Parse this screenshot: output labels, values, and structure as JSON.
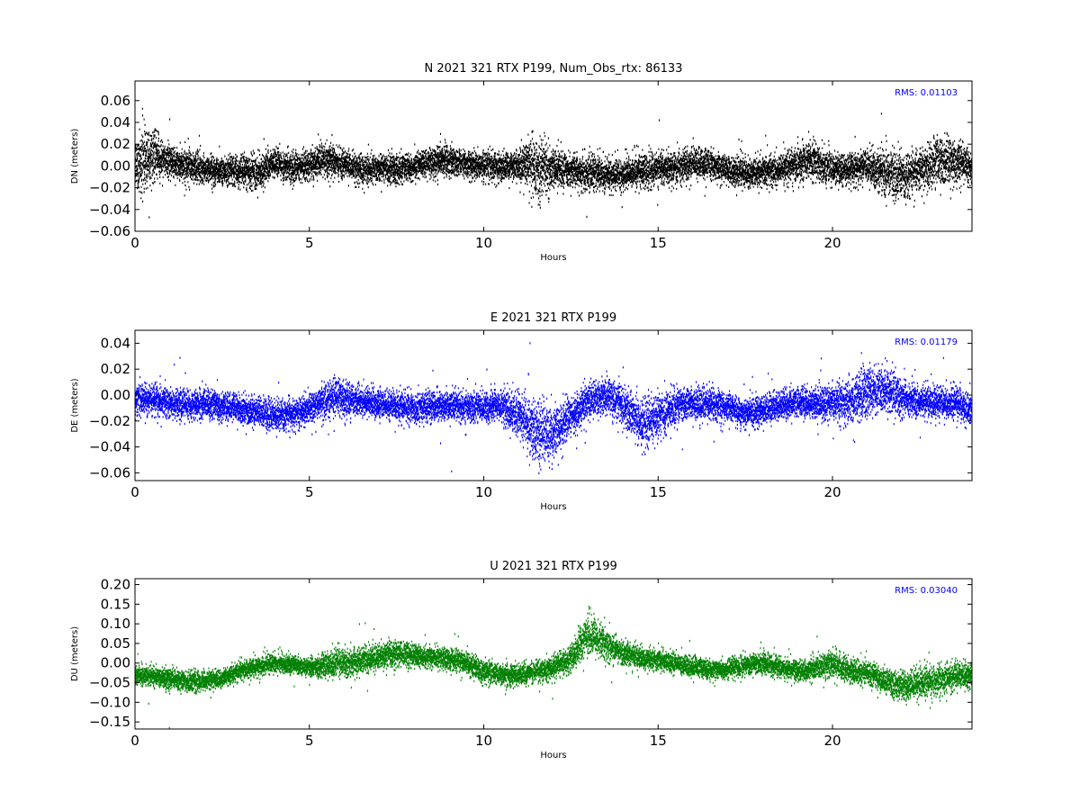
{
  "chart_data": [
    {
      "type": "scatter",
      "title": "N 2021 321 RTX  P199, Num_Obs_rtx: 86133",
      "xlabel": "Hours",
      "ylabel": "DN (meters)",
      "xlim": [
        0,
        24
      ],
      "ylim": [
        -0.06,
        0.078
      ],
      "xticks": [
        0,
        5,
        10,
        15,
        20
      ],
      "yticks": [
        -0.06,
        -0.04,
        -0.02,
        0.0,
        0.02,
        0.04,
        0.06
      ],
      "ytick_labels": [
        "−0.06",
        "−0.04",
        "−0.02",
        "0.00",
        "0.02",
        "0.04",
        "0.06"
      ],
      "annotation": "RMS:  0.01103",
      "color": "#000000",
      "grid": false,
      "profile": {
        "hours": [
          0,
          0.2,
          0.4,
          0.7,
          1.0,
          1.5,
          2.0,
          2.5,
          3.0,
          3.5,
          4.0,
          4.5,
          5.0,
          5.5,
          6.0,
          6.5,
          7.0,
          7.5,
          8.0,
          8.5,
          9.0,
          9.5,
          10.0,
          10.5,
          11.0,
          11.3,
          11.6,
          12.0,
          12.5,
          13.0,
          13.5,
          14.0,
          14.5,
          15.0,
          15.5,
          16.0,
          16.5,
          17.0,
          17.5,
          18.0,
          18.5,
          19.0,
          19.5,
          20.0,
          20.5,
          21.0,
          21.5,
          22.0,
          22.5,
          23.0,
          23.5,
          24.0
        ],
        "mean": [
          0.0,
          0.005,
          0.01,
          0.008,
          0.003,
          0.0,
          -0.003,
          -0.004,
          -0.005,
          -0.006,
          0.003,
          -0.002,
          0.001,
          0.005,
          0.002,
          -0.004,
          -0.003,
          -0.002,
          -0.001,
          0.003,
          0.005,
          0.002,
          0.0,
          -0.001,
          0.0,
          0.003,
          -0.004,
          -0.002,
          -0.005,
          -0.006,
          -0.007,
          -0.008,
          -0.004,
          -0.003,
          -0.002,
          0.003,
          0.002,
          -0.004,
          -0.007,
          -0.005,
          -0.004,
          0.002,
          0.005,
          -0.003,
          -0.004,
          0.0,
          -0.006,
          -0.008,
          -0.003,
          0.004,
          0.005,
          -0.003
        ],
        "spread": [
          0.018,
          0.03,
          0.025,
          0.015,
          0.013,
          0.013,
          0.012,
          0.012,
          0.012,
          0.014,
          0.012,
          0.012,
          0.012,
          0.014,
          0.012,
          0.011,
          0.011,
          0.011,
          0.011,
          0.012,
          0.012,
          0.011,
          0.011,
          0.011,
          0.012,
          0.025,
          0.024,
          0.015,
          0.013,
          0.016,
          0.014,
          0.013,
          0.013,
          0.013,
          0.013,
          0.013,
          0.012,
          0.012,
          0.012,
          0.012,
          0.012,
          0.014,
          0.015,
          0.013,
          0.012,
          0.014,
          0.018,
          0.018,
          0.015,
          0.02,
          0.018,
          0.014
        ]
      }
    },
    {
      "type": "scatter",
      "title": "E 2021 321 RTX  P199",
      "xlabel": "Hours",
      "ylabel": "DE (meters)",
      "xlim": [
        0,
        24
      ],
      "ylim": [
        -0.066,
        0.05
      ],
      "xticks": [
        0,
        5,
        10,
        15,
        20
      ],
      "yticks": [
        -0.06,
        -0.04,
        -0.02,
        0.0,
        0.02,
        0.04
      ],
      "ytick_labels": [
        "−0.06",
        "−0.04",
        "−0.02",
        "0.00",
        "0.02",
        "0.04"
      ],
      "annotation": "RMS:  0.01179",
      "color": "#0000ff",
      "grid": false,
      "profile": {
        "hours": [
          0,
          0.5,
          1.0,
          1.5,
          2.0,
          2.5,
          3.0,
          3.5,
          4.0,
          4.5,
          5.0,
          5.5,
          5.8,
          6.2,
          6.5,
          7.0,
          7.5,
          8.0,
          8.5,
          9.0,
          9.5,
          10.0,
          10.5,
          11.0,
          11.5,
          12.0,
          12.5,
          13.0,
          13.5,
          14.0,
          14.5,
          15.0,
          15.5,
          16.0,
          16.5,
          17.0,
          17.5,
          18.0,
          18.5,
          19.0,
          19.5,
          20.0,
          20.5,
          21.0,
          21.5,
          22.0,
          22.5,
          23.0,
          23.5,
          24.0
        ],
        "mean": [
          -0.005,
          -0.002,
          -0.006,
          -0.008,
          -0.007,
          -0.008,
          -0.012,
          -0.013,
          -0.016,
          -0.015,
          -0.01,
          -0.003,
          0.0,
          -0.004,
          -0.005,
          -0.006,
          -0.009,
          -0.011,
          -0.01,
          -0.008,
          -0.009,
          -0.01,
          -0.008,
          -0.015,
          -0.028,
          -0.03,
          -0.015,
          -0.005,
          0.0,
          -0.008,
          -0.022,
          -0.018,
          -0.009,
          -0.006,
          -0.008,
          -0.01,
          -0.015,
          -0.012,
          -0.008,
          -0.005,
          -0.007,
          -0.005,
          -0.004,
          0.002,
          0.005,
          -0.002,
          -0.005,
          -0.006,
          -0.007,
          -0.01
        ],
        "spread": [
          0.011,
          0.011,
          0.01,
          0.01,
          0.01,
          0.01,
          0.01,
          0.011,
          0.01,
          0.01,
          0.01,
          0.012,
          0.013,
          0.011,
          0.01,
          0.01,
          0.01,
          0.01,
          0.011,
          0.01,
          0.01,
          0.01,
          0.011,
          0.016,
          0.02,
          0.019,
          0.014,
          0.012,
          0.012,
          0.015,
          0.016,
          0.015,
          0.012,
          0.011,
          0.011,
          0.01,
          0.009,
          0.01,
          0.01,
          0.01,
          0.011,
          0.013,
          0.014,
          0.016,
          0.016,
          0.013,
          0.011,
          0.011,
          0.011,
          0.01
        ]
      }
    },
    {
      "type": "scatter",
      "title": "U 2021 321 RTX  P199",
      "xlabel": "Hours",
      "ylabel": "DU (meters)",
      "xlim": [
        0,
        24
      ],
      "ylim": [
        -0.168,
        0.215
      ],
      "xticks": [
        0,
        5,
        10,
        15,
        20
      ],
      "yticks": [
        -0.15,
        -0.1,
        -0.05,
        0.0,
        0.05,
        0.1,
        0.15,
        0.2
      ],
      "ytick_labels": [
        "−0.15",
        "−0.10",
        "−0.05",
        "0.00",
        "0.05",
        "0.10",
        "0.15",
        "0.20"
      ],
      "annotation": "RMS:  0.03040",
      "color": "#008000",
      "grid": false,
      "profile": {
        "hours": [
          0,
          0.5,
          1.0,
          1.5,
          2.0,
          2.5,
          3.0,
          3.5,
          4.0,
          4.5,
          5.0,
          5.5,
          6.0,
          6.5,
          7.0,
          7.5,
          8.0,
          8.5,
          9.0,
          9.5,
          10.0,
          10.5,
          11.0,
          11.5,
          12.0,
          12.5,
          12.8,
          13.0,
          13.3,
          13.7,
          14.0,
          14.5,
          15.0,
          15.5,
          16.0,
          16.5,
          17.0,
          17.5,
          18.0,
          18.5,
          19.0,
          19.5,
          20.0,
          20.5,
          21.0,
          21.5,
          22.0,
          22.5,
          23.0,
          23.5,
          24.0
        ],
        "mean": [
          -0.03,
          -0.035,
          -0.04,
          -0.045,
          -0.045,
          -0.04,
          -0.02,
          -0.01,
          0.0,
          -0.005,
          -0.01,
          -0.005,
          0.0,
          0.005,
          0.015,
          0.025,
          0.02,
          0.015,
          0.01,
          0.0,
          -0.02,
          -0.03,
          -0.03,
          -0.02,
          -0.01,
          0.01,
          0.05,
          0.075,
          0.06,
          0.04,
          0.025,
          0.015,
          0.005,
          0.0,
          -0.01,
          -0.02,
          -0.015,
          -0.005,
          0.0,
          -0.01,
          -0.02,
          -0.015,
          0.0,
          -0.02,
          -0.025,
          -0.045,
          -0.06,
          -0.05,
          -0.045,
          -0.035,
          -0.03
        ],
        "spread": [
          0.022,
          0.022,
          0.023,
          0.023,
          0.022,
          0.02,
          0.02,
          0.02,
          0.02,
          0.02,
          0.02,
          0.03,
          0.032,
          0.03,
          0.03,
          0.028,
          0.025,
          0.022,
          0.024,
          0.026,
          0.025,
          0.024,
          0.024,
          0.024,
          0.025,
          0.03,
          0.04,
          0.045,
          0.04,
          0.03,
          0.028,
          0.025,
          0.024,
          0.023,
          0.022,
          0.02,
          0.022,
          0.024,
          0.024,
          0.023,
          0.023,
          0.028,
          0.03,
          0.028,
          0.025,
          0.028,
          0.035,
          0.035,
          0.035,
          0.03,
          0.026
        ]
      }
    }
  ]
}
